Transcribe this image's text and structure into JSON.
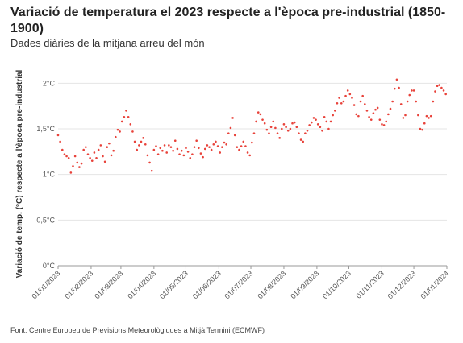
{
  "header": {
    "title": "Variació de temperatura el 2023 respecte a l'època pre-industrial (1850-1900)",
    "subtitle": "Dades diàries de la mitjana arreu del món"
  },
  "footer": {
    "source": "Font: Centre Europeu de Previsions Meteorològiques a Mitjà Termini (ECMWF)"
  },
  "colors": {
    "points": "#e8423a",
    "grid": "#e5e5e5",
    "axis": "#999999"
  },
  "chart_data": {
    "type": "scatter",
    "title": "Variació de temperatura el 2023 respecte a l'època pre-industrial (1850-1900)",
    "subtitle": "Dades diàries de la mitjana arreu del món",
    "xlabel": "",
    "ylabel": "Variació de temp. (°C) respecte a l'època pre-industrial",
    "ylim": [
      0,
      2.1
    ],
    "xlim": [
      "2023-01-01",
      "2024-01-01"
    ],
    "yticks": [
      0,
      0.5,
      1,
      1.5,
      2
    ],
    "ytick_labels": [
      "0°C",
      "0,5°C",
      "1°C",
      "1,5°C",
      "2°C"
    ],
    "xtick_labels": [
      "01/01/2023",
      "01/02/2023",
      "01/03/2023",
      "01/04/2023",
      "01/05/2023",
      "01/06/2023",
      "01/07/2023",
      "01/08/2023",
      "01/09/2023",
      "01/10/2023",
      "01/11/2023",
      "01/12/2023",
      "01/01/2024"
    ],
    "grid": true,
    "legend": "none",
    "series": [
      {
        "x": [
          "2023-01-01",
          "2023-01-03",
          "2023-01-05",
          "2023-01-07",
          "2023-01-09",
          "2023-01-11",
          "2023-01-13",
          "2023-01-15",
          "2023-01-17",
          "2023-01-19",
          "2023-01-21",
          "2023-01-23",
          "2023-01-25",
          "2023-01-27",
          "2023-01-29",
          "2023-01-31",
          "2023-02-02",
          "2023-02-04",
          "2023-02-06",
          "2023-02-08",
          "2023-02-10",
          "2023-02-12",
          "2023-02-14",
          "2023-02-16",
          "2023-02-18",
          "2023-02-20",
          "2023-02-22",
          "2023-02-24",
          "2023-02-26",
          "2023-02-28",
          "2023-03-02",
          "2023-03-04",
          "2023-03-06",
          "2023-03-08",
          "2023-03-10",
          "2023-03-12",
          "2023-03-14",
          "2023-03-16",
          "2023-03-18",
          "2023-03-20",
          "2023-03-22",
          "2023-03-24",
          "2023-03-26",
          "2023-03-28",
          "2023-03-30",
          "2023-04-01",
          "2023-04-03",
          "2023-04-05",
          "2023-04-07",
          "2023-04-09",
          "2023-04-11",
          "2023-04-13",
          "2023-04-15",
          "2023-04-17",
          "2023-04-19",
          "2023-04-21",
          "2023-04-23",
          "2023-04-25",
          "2023-04-27",
          "2023-04-29",
          "2023-05-01",
          "2023-05-03",
          "2023-05-05",
          "2023-05-07",
          "2023-05-09",
          "2023-05-11",
          "2023-05-13",
          "2023-05-15",
          "2023-05-17",
          "2023-05-19",
          "2023-05-21",
          "2023-05-23",
          "2023-05-25",
          "2023-05-27",
          "2023-05-29",
          "2023-05-31",
          "2023-06-02",
          "2023-06-04",
          "2023-06-06",
          "2023-06-08",
          "2023-06-10",
          "2023-06-12",
          "2023-06-14",
          "2023-06-16",
          "2023-06-18",
          "2023-06-20",
          "2023-06-22",
          "2023-06-24",
          "2023-06-26",
          "2023-06-28",
          "2023-06-30",
          "2023-07-02",
          "2023-07-04",
          "2023-07-06",
          "2023-07-08",
          "2023-07-10",
          "2023-07-12",
          "2023-07-14",
          "2023-07-16",
          "2023-07-18",
          "2023-07-20",
          "2023-07-22",
          "2023-07-24",
          "2023-07-26",
          "2023-07-28",
          "2023-07-30",
          "2023-08-01",
          "2023-08-03",
          "2023-08-05",
          "2023-08-07",
          "2023-08-09",
          "2023-08-11",
          "2023-08-13",
          "2023-08-15",
          "2023-08-17",
          "2023-08-19",
          "2023-08-21",
          "2023-08-23",
          "2023-08-25",
          "2023-08-27",
          "2023-08-29",
          "2023-08-31",
          "2023-09-02",
          "2023-09-04",
          "2023-09-06",
          "2023-09-08",
          "2023-09-10",
          "2023-09-12",
          "2023-09-14",
          "2023-09-16",
          "2023-09-18",
          "2023-09-20",
          "2023-09-22",
          "2023-09-24",
          "2023-09-26",
          "2023-09-28",
          "2023-09-30",
          "2023-10-02",
          "2023-10-04",
          "2023-10-06",
          "2023-10-08",
          "2023-10-10",
          "2023-10-12",
          "2023-10-14",
          "2023-10-16",
          "2023-10-18",
          "2023-10-20",
          "2023-10-22",
          "2023-10-24",
          "2023-10-26",
          "2023-10-28",
          "2023-10-30",
          "2023-11-01",
          "2023-11-03",
          "2023-11-05",
          "2023-11-07",
          "2023-11-09",
          "2023-11-11",
          "2023-11-13",
          "2023-11-15",
          "2023-11-17",
          "2023-11-19",
          "2023-11-21",
          "2023-11-23",
          "2023-11-25",
          "2023-11-27",
          "2023-11-29",
          "2023-12-01",
          "2023-12-03",
          "2023-12-05",
          "2023-12-07",
          "2023-12-09",
          "2023-12-11",
          "2023-12-13",
          "2023-12-15",
          "2023-12-17",
          "2023-12-19",
          "2023-12-21",
          "2023-12-23",
          "2023-12-25",
          "2023-12-27",
          "2023-12-29",
          "2023-12-31"
        ],
        "y": [
          1.43,
          1.36,
          1.27,
          1.22,
          1.2,
          1.18,
          1.02,
          1.09,
          1.2,
          1.13,
          1.08,
          1.12,
          1.27,
          1.3,
          1.22,
          1.18,
          1.15,
          1.24,
          1.18,
          1.27,
          1.32,
          1.2,
          1.14,
          1.3,
          1.34,
          1.21,
          1.26,
          1.41,
          1.49,
          1.47,
          1.58,
          1.63,
          1.7,
          1.63,
          1.55,
          1.47,
          1.36,
          1.27,
          1.32,
          1.36,
          1.4,
          1.33,
          1.21,
          1.13,
          1.04,
          1.27,
          1.31,
          1.22,
          1.29,
          1.26,
          1.32,
          1.24,
          1.32,
          1.3,
          1.26,
          1.37,
          1.28,
          1.22,
          1.26,
          1.21,
          1.29,
          1.25,
          1.18,
          1.22,
          1.3,
          1.37,
          1.29,
          1.23,
          1.19,
          1.28,
          1.32,
          1.3,
          1.27,
          1.33,
          1.36,
          1.31,
          1.24,
          1.3,
          1.35,
          1.33,
          1.45,
          1.51,
          1.62,
          1.43,
          1.3,
          1.27,
          1.31,
          1.36,
          1.31,
          1.24,
          1.21,
          1.35,
          1.45,
          1.58,
          1.68,
          1.66,
          1.6,
          1.56,
          1.49,
          1.45,
          1.52,
          1.58,
          1.51,
          1.45,
          1.4,
          1.5,
          1.55,
          1.52,
          1.48,
          1.5,
          1.56,
          1.57,
          1.52,
          1.45,
          1.38,
          1.36,
          1.45,
          1.48,
          1.54,
          1.57,
          1.62,
          1.6,
          1.55,
          1.52,
          1.48,
          1.63,
          1.58,
          1.5,
          1.58,
          1.65,
          1.7,
          1.78,
          1.84,
          1.78,
          1.8,
          1.86,
          1.92,
          1.88,
          1.84,
          1.76,
          1.66,
          1.64,
          1.8,
          1.86,
          1.77,
          1.7,
          1.63,
          1.6,
          1.67,
          1.71,
          1.73,
          1.6,
          1.55,
          1.54,
          1.58,
          1.66,
          1.72,
          1.8,
          1.94,
          2.04,
          1.95,
          1.77,
          1.62,
          1.65,
          1.8,
          1.87,
          1.92,
          1.92,
          1.8,
          1.65,
          1.5,
          1.49,
          1.56,
          1.64,
          1.62,
          1.64,
          1.8,
          1.91,
          1.97,
          1.98,
          1.95,
          1.92,
          1.88
        ]
      }
    ]
  }
}
